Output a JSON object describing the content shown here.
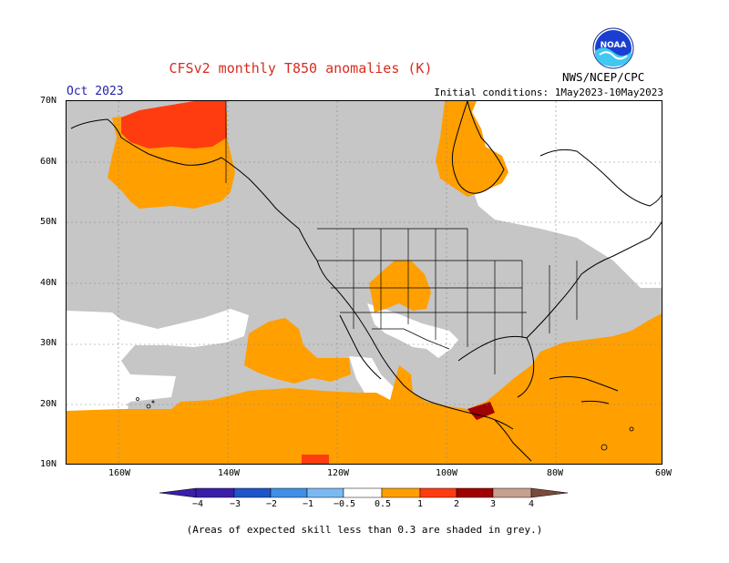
{
  "title": "CFSv2 monthly T850 anomalies (K)",
  "valid_month": "Oct 2023",
  "initial_conditions": "Initial conditions: 1May2023-10May2023",
  "agency": "NWS/NCEP/CPC",
  "logo_text": "NOAA",
  "footnote": "(Areas of expected skill less than 0.3 are shaded in grey.)",
  "lat_labels": [
    "70N",
    "60N",
    "50N",
    "40N",
    "30N",
    "20N",
    "10N"
  ],
  "lon_labels": [
    "160W",
    "140W",
    "120W",
    "100W",
    "80W",
    "60W"
  ],
  "colorbar": {
    "labels": [
      "−4",
      "−3",
      "−2",
      "−1",
      "−0.5",
      "0.5",
      "1",
      "2",
      "3",
      "4"
    ],
    "colors": [
      "#3b1ea8",
      "#1f55c8",
      "#3f8fe6",
      "#7ab9f2",
      "#ffffff",
      "#ff9f00",
      "#ff3c10",
      "#a00000",
      "#c8a090",
      "#7a4a3a"
    ]
  },
  "legend_colors": {
    "low_skill": "#c6c6c6",
    "warm_0_5_1": "#ff9f00",
    "warm_1_2": "#ff3c10"
  }
}
